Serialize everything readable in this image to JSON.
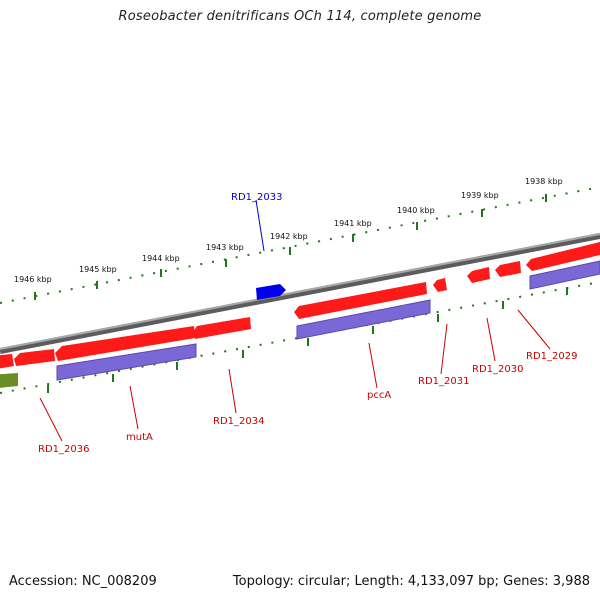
{
  "title": "Roseobacter denitrificans OCh 114, complete genome",
  "footer": {
    "accession": "Accession: NC_008209",
    "topology": "Topology: circular; Length: 4,133,097 bp; Genes: 3,988"
  },
  "ticks": [
    "1938 kbp",
    "1939 kbp",
    "1940 kbp",
    "1941 kbp",
    "1942 kbp",
    "1943 kbp",
    "1944 kbp",
    "1945 kbp",
    "1946 kbp"
  ],
  "gene_labels": {
    "rd1_2033": "RD1_2033",
    "rd1_2029": "RD1_2029",
    "rd1_2030": "RD1_2030",
    "rd1_2031": "RD1_2031",
    "pcca": "pccA",
    "rd1_2034": "RD1_2034",
    "muta": "mutA",
    "rd1_2036": "RD1_2036"
  },
  "colors": {
    "backbone": "#808080",
    "forward_gene": "#ff0000",
    "reverse_gene": "#7b68d6",
    "highlight_gene": "#0000ee",
    "other_feature": "#6b8e23",
    "tick": "#1a7a1a",
    "label_red": "#cc0000",
    "label_blue": "#0000cc"
  }
}
